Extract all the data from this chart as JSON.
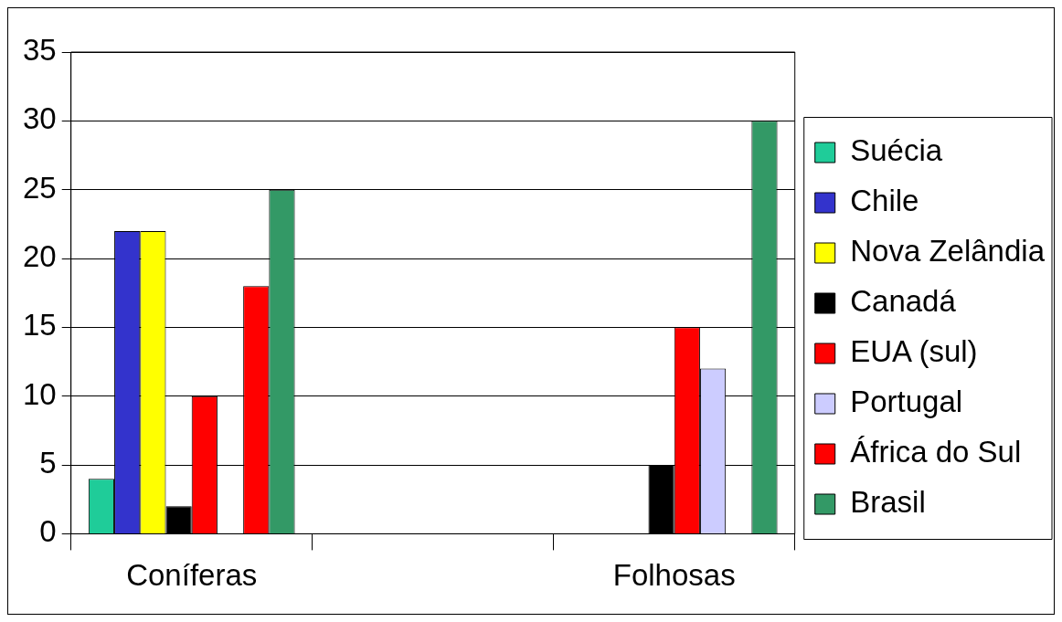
{
  "chart_data": {
    "type": "bar",
    "categories": [
      "Coníferas",
      null,
      "Folhosas"
    ],
    "series": [
      {
        "name": "Suécia",
        "color": "#1fcc99",
        "values": [
          4,
          null,
          null
        ]
      },
      {
        "name": "Chile",
        "color": "#3333cc",
        "values": [
          22,
          null,
          null
        ]
      },
      {
        "name": "Nova Zelândia",
        "color": "#ffff00",
        "values": [
          22,
          null,
          null
        ]
      },
      {
        "name": "Canadá",
        "color": "#000000",
        "values": [
          2,
          null,
          5
        ]
      },
      {
        "name": "EUA (sul)",
        "color": "#ff0000",
        "values": [
          10,
          null,
          15
        ]
      },
      {
        "name": "Portugal",
        "color": "#ccccff",
        "values": [
          null,
          null,
          12
        ]
      },
      {
        "name": "África do Sul",
        "color": "#ff0000",
        "values": [
          18,
          null,
          null
        ]
      },
      {
        "name": "Brasil",
        "color": "#339966",
        "values": [
          25,
          null,
          30
        ]
      }
    ],
    "ylim": [
      0,
      35
    ],
    "yticks": [
      0,
      5,
      10,
      15,
      20,
      25,
      30,
      35
    ],
    "grid": "y",
    "legend": "right"
  }
}
